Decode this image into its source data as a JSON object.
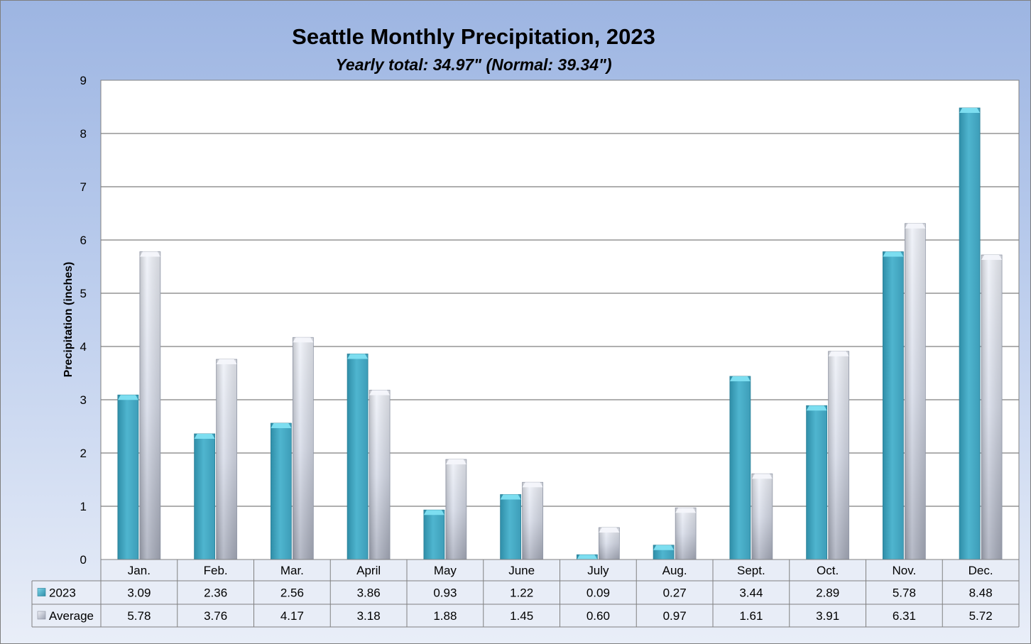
{
  "chart_data": {
    "type": "bar",
    "title": "Seattle Monthly Precipitation, 2023",
    "subtitle": "Yearly total: 34.97\" (Normal: 39.34\")",
    "ylabel": "Precipitation (inches)",
    "xlabel": "",
    "ylim": [
      0,
      9
    ],
    "yticks": [
      "0",
      "1",
      "2",
      "3",
      "4",
      "5",
      "6",
      "7",
      "8",
      "9"
    ],
    "grid": true,
    "legend": "data-table",
    "categories": [
      "Jan.",
      "Feb.",
      "Mar.",
      "April",
      "May",
      "June",
      "July",
      "Aug.",
      "Sept.",
      "Oct.",
      "Nov.",
      "Dec."
    ],
    "series": [
      {
        "name": "2023",
        "color": "#4bacc6",
        "values": [
          3.09,
          2.36,
          2.56,
          3.86,
          0.93,
          1.22,
          0.09,
          0.27,
          3.44,
          2.89,
          5.78,
          8.48
        ],
        "labels": [
          "3.09",
          "2.36",
          "2.56",
          "3.86",
          "0.93",
          "1.22",
          "0.09",
          "0.27",
          "3.44",
          "2.89",
          "5.78",
          "8.48"
        ]
      },
      {
        "name": "Average",
        "color": "#c9d0e0",
        "values": [
          5.78,
          3.76,
          4.17,
          3.18,
          1.88,
          1.45,
          0.6,
          0.97,
          1.61,
          3.91,
          6.31,
          5.72
        ],
        "labels": [
          "5.78",
          "3.76",
          "4.17",
          "3.18",
          "1.88",
          "1.45",
          "0.60",
          "0.97",
          "1.61",
          "3.91",
          "6.31",
          "5.72"
        ]
      }
    ]
  }
}
